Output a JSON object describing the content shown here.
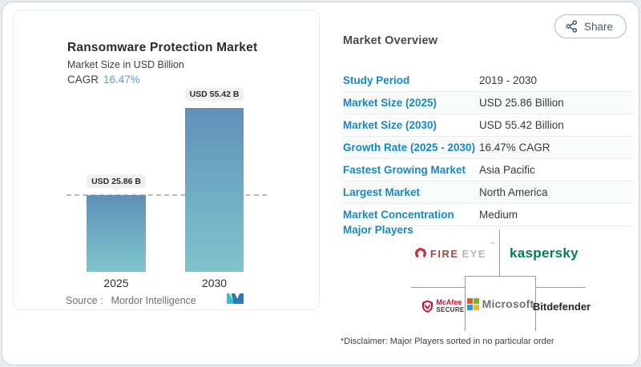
{
  "share": {
    "label": "Share"
  },
  "panel": {
    "source_label": "Source :",
    "source_value": "Mordor Intelligence",
    "cagr_label": "CAGR"
  },
  "chart_data": {
    "type": "bar",
    "title": "Ransomware Protection Market",
    "subtitle": "Market Size in USD Billion",
    "unit": "USD Billion",
    "categories": [
      "2025",
      "2030"
    ],
    "values": [
      25.86,
      55.42
    ],
    "bar_labels": [
      "USD 25.86 B",
      "USD 55.42 B"
    ],
    "cagr": "16.47%",
    "ylim": [
      0,
      55.42
    ],
    "baseline_dash_at": 25.86,
    "grid": false,
    "legend": false
  },
  "overview": {
    "title": "Market Overview",
    "rows": [
      {
        "label": "Study Period",
        "value": "2019 - 2030"
      },
      {
        "label": "Market Size (2025)",
        "value": "USD 25.86 Billion"
      },
      {
        "label": "Market Size (2030)",
        "value": "USD 55.42 Billion"
      },
      {
        "label": "Growth Rate (2025 - 2030)",
        "value": "16.47% CAGR"
      },
      {
        "label": "Fastest Growing Market",
        "value": "Asia Pacific"
      },
      {
        "label": "Largest Market",
        "value": "North America"
      },
      {
        "label": "Market Concentration",
        "value": "Medium"
      }
    ],
    "major_players_label": "Major Players",
    "players": {
      "fireeye": {
        "text_primary": "FIRE",
        "text_secondary": "EYE",
        "tm": "™"
      },
      "kaspersky": {
        "wordmark": "kaspersky"
      },
      "mcafee": {
        "line1": "McAfee",
        "line2": "SECURE",
        "tm": "™"
      },
      "microsoft": {
        "wordmark": "Microsoft"
      },
      "bitdefender": {
        "wordmark": "Bitdefender"
      }
    },
    "disclaimer": "*Disclaimer: Major Players sorted in no particular order"
  },
  "colors": {
    "label_blue": "#1787c1",
    "cagr_blue": "#5b9dd4",
    "bar_top": "#5f90b8",
    "bar_bottom": "#80c5cd",
    "pill_bg": "#edf0ef",
    "share_slate": "#3c6177",
    "fireeye_icon": "#d22630",
    "fireeye_primary": "#a9463f",
    "fireeye_secondary": "#b5b8b9",
    "kaspersky_green": "#00804f",
    "mcafee_red": "#c8102e",
    "mcafee_dark": "#3a3a3a",
    "ms_red": "#f25022",
    "ms_green": "#7fba00",
    "ms_blue": "#00a4ef",
    "ms_yellow": "#ffb900",
    "ms_gray": "#737373",
    "bitdefender_dark": "#26262a",
    "logo_teal": "#3bbfce",
    "logo_blue": "#2a7ab8"
  }
}
